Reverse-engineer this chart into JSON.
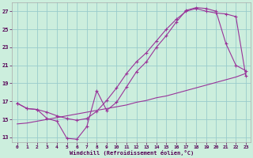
{
  "xlabel": "Windchill (Refroidissement éolien,°C)",
  "bg_color": "#cceedd",
  "line_color": "#993399",
  "grid_color": "#99cccc",
  "xmin": -0.5,
  "xmax": 23.5,
  "ymin": 12.5,
  "ymax": 28.0,
  "yticks": [
    13,
    15,
    17,
    19,
    21,
    23,
    25,
    27
  ],
  "xticks": [
    0,
    1,
    2,
    3,
    4,
    5,
    6,
    7,
    8,
    9,
    10,
    11,
    12,
    13,
    14,
    15,
    16,
    17,
    18,
    19,
    20,
    21,
    22,
    23
  ],
  "line1_x": [
    0,
    1,
    2,
    3,
    4,
    5,
    6,
    7,
    8,
    9,
    10,
    11,
    12,
    13,
    14,
    15,
    16,
    17,
    18,
    19,
    20,
    21,
    22,
    23
  ],
  "line1_y": [
    16.8,
    16.2,
    16.1,
    15.1,
    14.8,
    12.9,
    12.8,
    14.2,
    18.2,
    16.0,
    16.9,
    18.6,
    20.3,
    21.4,
    23.0,
    24.3,
    25.8,
    27.1,
    27.4,
    27.3,
    27.0,
    23.4,
    21.0,
    20.4
  ],
  "line2_x": [
    0,
    1,
    2,
    3,
    4,
    5,
    6,
    7,
    8,
    9,
    10,
    11,
    12,
    13,
    14,
    15,
    16,
    17,
    18,
    19,
    20,
    21,
    22,
    23
  ],
  "line2_y": [
    16.8,
    16.2,
    16.1,
    15.8,
    15.4,
    15.1,
    14.9,
    15.1,
    15.9,
    17.1,
    18.5,
    20.1,
    21.4,
    22.4,
    23.7,
    25.0,
    26.1,
    27.0,
    27.3,
    27.0,
    26.8,
    26.7,
    26.4,
    19.8
  ],
  "line3_x": [
    0,
    1,
    2,
    3,
    4,
    5,
    6,
    7,
    8,
    9,
    10,
    11,
    12,
    13,
    14,
    15,
    16,
    17,
    18,
    19,
    20,
    21,
    22,
    23
  ],
  "line3_y": [
    14.5,
    14.6,
    14.8,
    15.0,
    15.2,
    15.4,
    15.6,
    15.8,
    16.0,
    16.2,
    16.4,
    16.6,
    16.9,
    17.1,
    17.4,
    17.6,
    17.9,
    18.2,
    18.5,
    18.8,
    19.1,
    19.4,
    19.7,
    20.1
  ]
}
